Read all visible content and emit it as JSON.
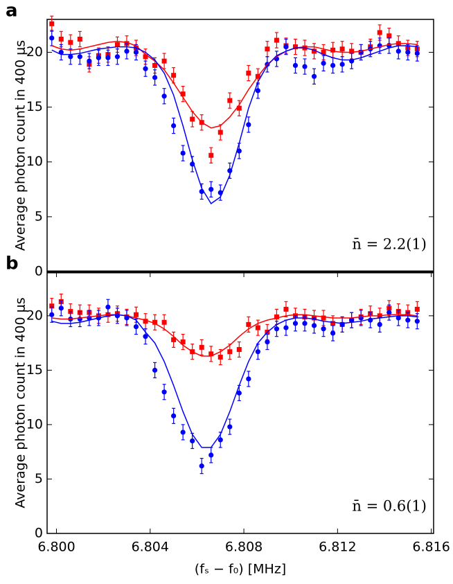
{
  "chart_data": [
    {
      "type": "scatter",
      "panel_label": "a",
      "ylabel": "Average photon count in 400 μs",
      "annotation": "n̄ = 2.2(1)",
      "xlim": [
        6.7996,
        6.8161
      ],
      "ylim": [
        0,
        23
      ],
      "yticks": [
        0,
        5,
        10,
        15,
        20
      ],
      "x": [
        6.7998,
        6.8002,
        6.8006,
        6.801,
        6.8014,
        6.8018,
        6.8022,
        6.8026,
        6.803,
        6.8034,
        6.8038,
        6.8042,
        6.8046,
        6.805,
        6.8054,
        6.8058,
        6.8062,
        6.8066,
        6.807,
        6.8074,
        6.8078,
        6.8082,
        6.8086,
        6.809,
        6.8094,
        6.8098,
        6.8102,
        6.8106,
        6.811,
        6.8114,
        6.8118,
        6.8122,
        6.8126,
        6.813,
        6.8134,
        6.8138,
        6.8142,
        6.8146,
        6.815,
        6.8154
      ],
      "series": [
        {
          "kind": "points",
          "marker": "square",
          "color": "#ff0000",
          "error": 0.7,
          "values": [
            22.6,
            21.2,
            20.9,
            21.2,
            18.9,
            19.7,
            19.8,
            20.7,
            20.8,
            20.4,
            19.6,
            18.8,
            19.2,
            17.9,
            16.2,
            13.9,
            13.6,
            10.6,
            12.7,
            15.6,
            14.9,
            18.1,
            17.8,
            20.3,
            21.1,
            20.6,
            20.5,
            20.4,
            20.1,
            20.0,
            20.2,
            20.3,
            20.1,
            20.0,
            20.5,
            21.8,
            21.5,
            20.8,
            20.4,
            20.3
          ]
        },
        {
          "kind": "points",
          "marker": "circle",
          "color": "#0000ff",
          "error": 0.7,
          "values": [
            21.3,
            20.0,
            19.6,
            19.6,
            19.2,
            19.5,
            19.5,
            19.6,
            20.1,
            20.0,
            18.5,
            17.7,
            16.0,
            13.3,
            10.8,
            9.8,
            7.3,
            7.5,
            7.2,
            9.2,
            11.0,
            13.4,
            16.5,
            18.9,
            19.4,
            20.5,
            18.8,
            18.7,
            17.8,
            19.0,
            18.8,
            18.9,
            19.2,
            20.0,
            20.3,
            20.6,
            20.6,
            20.1,
            20.0,
            19.9
          ]
        },
        {
          "kind": "line",
          "color": "#ff0000",
          "values": [
            20.6,
            20.3,
            20.2,
            20.3,
            20.5,
            20.7,
            20.9,
            21.0,
            20.9,
            20.6,
            19.8,
            19.2,
            18.4,
            17.2,
            15.9,
            14.6,
            13.6,
            13.1,
            13.3,
            14.1,
            15.2,
            16.6,
            17.8,
            18.9,
            19.6,
            20.1,
            20.4,
            20.5,
            20.5,
            20.3,
            20.1,
            20.0,
            20.0,
            20.1,
            20.3,
            20.5,
            20.7,
            20.8,
            20.8,
            20.7
          ]
        },
        {
          "kind": "line",
          "color": "#0000ff",
          "values": [
            20.2,
            19.8,
            19.8,
            19.9,
            20.1,
            20.3,
            20.4,
            20.5,
            20.5,
            20.4,
            20.0,
            19.3,
            18.1,
            16.1,
            13.3,
            10.2,
            7.6,
            6.2,
            6.8,
            8.8,
            11.7,
            14.9,
            17.3,
            18.8,
            19.7,
            20.1,
            20.4,
            20.4,
            20.2,
            19.8,
            19.5,
            19.3,
            19.3,
            19.5,
            19.8,
            20.1,
            20.4,
            20.6,
            20.6,
            20.5
          ]
        }
      ]
    },
    {
      "type": "scatter",
      "panel_label": "b",
      "ylabel": "Average photon count in 400 μs",
      "annotation": "n̄ = 0.6(1)",
      "xlabel": "(fₛ − f₀)  [MHz]",
      "xlim": [
        6.7996,
        6.8161
      ],
      "ylim": [
        0,
        24
      ],
      "yticks": [
        0,
        5,
        10,
        15,
        20
      ],
      "xticks": [
        {
          "value": 6.8,
          "label": "6.800"
        },
        {
          "value": 6.804,
          "label": "6.804"
        },
        {
          "value": 6.808,
          "label": "6.808"
        },
        {
          "value": 6.812,
          "label": "6.812"
        },
        {
          "value": 6.816,
          "label": "6.816"
        }
      ],
      "x": [
        6.7998,
        6.8002,
        6.8006,
        6.801,
        6.8014,
        6.8018,
        6.8022,
        6.8026,
        6.803,
        6.8034,
        6.8038,
        6.8042,
        6.8046,
        6.805,
        6.8054,
        6.8058,
        6.8062,
        6.8066,
        6.807,
        6.8074,
        6.8078,
        6.8082,
        6.8086,
        6.809,
        6.8094,
        6.8098,
        6.8102,
        6.8106,
        6.811,
        6.8114,
        6.8118,
        6.8122,
        6.8126,
        6.813,
        6.8134,
        6.8138,
        6.8142,
        6.8146,
        6.815,
        6.8154
      ],
      "series": [
        {
          "kind": "points",
          "marker": "square",
          "color": "#ff0000",
          "error": 0.7,
          "values": [
            20.9,
            21.3,
            20.4,
            20.3,
            20.3,
            20.0,
            20.1,
            20.2,
            19.9,
            20.1,
            19.5,
            19.4,
            19.4,
            17.8,
            17.6,
            16.7,
            17.1,
            16.5,
            16.2,
            16.7,
            16.9,
            19.2,
            18.9,
            18.5,
            19.9,
            20.6,
            20.0,
            19.9,
            19.8,
            19.8,
            19.3,
            19.2,
            19.6,
            19.9,
            20.2,
            20.0,
            20.7,
            20.4,
            20.3,
            20.6
          ]
        },
        {
          "kind": "points",
          "marker": "circle",
          "color": "#0000ff",
          "error": 0.7,
          "values": [
            20.1,
            20.7,
            19.7,
            19.7,
            19.8,
            19.8,
            20.8,
            20.0,
            19.8,
            19.0,
            18.1,
            15.0,
            13.0,
            10.8,
            9.3,
            8.5,
            6.2,
            7.2,
            8.6,
            9.8,
            12.9,
            14.2,
            16.7,
            17.6,
            18.8,
            18.9,
            19.3,
            19.3,
            19.1,
            18.8,
            18.4,
            19.2,
            19.6,
            19.8,
            19.6,
            19.2,
            20.3,
            19.8,
            19.6,
            19.5
          ]
        },
        {
          "kind": "line",
          "color": "#ff0000",
          "values": [
            19.8,
            19.7,
            19.7,
            19.8,
            19.9,
            20.0,
            20.1,
            20.1,
            20.0,
            19.8,
            19.6,
            19.3,
            18.8,
            18.1,
            17.3,
            16.7,
            16.3,
            16.3,
            16.7,
            17.3,
            18.1,
            18.8,
            19.3,
            19.6,
            19.8,
            20.0,
            20.1,
            20.1,
            20.0,
            19.9,
            19.8,
            19.8,
            19.8,
            19.9,
            20.0,
            20.0,
            20.1,
            20.1,
            20.1,
            20.0
          ]
        },
        {
          "kind": "line",
          "color": "#0000ff",
          "values": [
            19.5,
            19.3,
            19.3,
            19.4,
            19.6,
            19.8,
            20.0,
            20.1,
            20.0,
            19.6,
            18.5,
            17.5,
            15.8,
            13.6,
            11.2,
            9.1,
            7.9,
            7.9,
            9.1,
            11.2,
            13.6,
            15.8,
            17.5,
            18.5,
            19.2,
            19.6,
            19.8,
            19.8,
            19.7,
            19.5,
            19.4,
            19.3,
            19.4,
            19.5,
            19.7,
            19.8,
            19.9,
            20.0,
            20.0,
            19.9
          ]
        }
      ]
    }
  ]
}
